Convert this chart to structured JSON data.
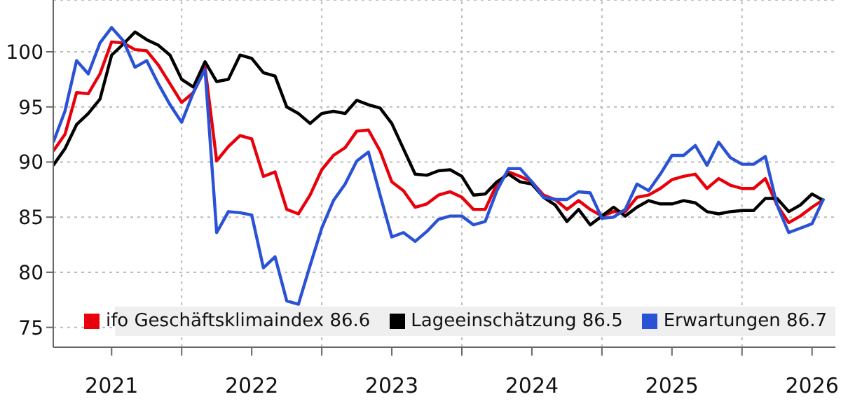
{
  "chart_data": {
    "type": "line",
    "x": [
      "2021-02",
      "2021-03",
      "2021-04",
      "2021-05",
      "2021-06",
      "2021-07",
      "2021-08",
      "2021-09",
      "2021-10",
      "2021-11",
      "2021-12",
      "2022-01",
      "2022-02",
      "2022-03",
      "2022-04",
      "2022-05",
      "2022-06",
      "2022-07",
      "2022-08",
      "2022-09",
      "2022-10",
      "2022-11",
      "2022-12",
      "2023-01",
      "2023-02",
      "2023-03",
      "2023-04",
      "2023-05",
      "2023-06",
      "2023-07",
      "2023-08",
      "2023-09",
      "2023-10",
      "2023-11",
      "2023-12",
      "2024-01",
      "2024-02",
      "2024-03",
      "2024-04",
      "2024-05",
      "2024-06",
      "2024-07",
      "2024-08",
      "2024-09",
      "2024-10",
      "2024-11",
      "2024-12",
      "2025-01",
      "2025-02",
      "2025-03",
      "2025-04",
      "2025-05",
      "2025-06",
      "2025-07",
      "2025-08",
      "2025-09",
      "2025-10",
      "2025-11",
      "2025-12",
      "2026-01",
      "2026-02",
      "2026-03",
      "2026-04",
      "2026-05",
      "2026-06",
      "2026-07",
      "2026-08"
    ],
    "series": [
      {
        "name": "ifo Geschäftsklimaindex 86.6",
        "color": "#e8000b",
        "values": [
          91.0,
          92.5,
          96.3,
          96.2,
          98.0,
          100.9,
          100.8,
          100.2,
          100.1,
          98.8,
          97.1,
          95.4,
          96.3,
          98.6,
          90.1,
          91.4,
          92.4,
          92.1,
          88.7,
          89.1,
          85.7,
          85.3,
          87.0,
          89.3,
          90.6,
          91.3,
          92.8,
          92.9,
          91.0,
          88.2,
          87.4,
          85.9,
          86.2,
          87.0,
          87.3,
          86.8,
          85.7,
          85.7,
          88.0,
          89.1,
          88.7,
          88.2,
          87.0,
          86.6,
          85.7,
          86.5,
          85.7,
          85.1,
          85.5,
          85.5,
          86.8,
          87.0,
          87.6,
          88.4,
          88.7,
          88.9,
          87.6,
          88.5,
          87.9,
          87.6,
          87.6,
          88.5,
          86.1,
          84.5,
          85.1,
          85.9,
          86.6
        ]
      },
      {
        "name": "Lageeinschätzung 86.5",
        "color": "#000000",
        "values": [
          89.7,
          91.2,
          93.4,
          94.4,
          95.7,
          99.7,
          100.7,
          101.8,
          101.1,
          100.6,
          99.7,
          97.5,
          96.8,
          99.1,
          97.3,
          97.5,
          99.7,
          99.4,
          98.1,
          97.8,
          95.0,
          94.4,
          93.5,
          94.4,
          94.6,
          94.4,
          95.6,
          95.2,
          94.9,
          93.5,
          91.2,
          88.9,
          88.8,
          89.2,
          89.3,
          88.7,
          87.0,
          87.1,
          88.2,
          88.9,
          88.2,
          88.0,
          86.8,
          86.1,
          84.6,
          85.7,
          84.3,
          85.1,
          85.9,
          85.1,
          85.9,
          86.5,
          86.2,
          86.2,
          86.5,
          86.3,
          85.5,
          85.3,
          85.5,
          85.6,
          85.6,
          86.7,
          86.7,
          85.5,
          86.1,
          87.1,
          86.5
        ]
      },
      {
        "name": "Erwartungen 86.7",
        "color": "#2a52d4",
        "values": [
          91.8,
          94.6,
          99.2,
          98.0,
          100.8,
          102.2,
          101.0,
          98.6,
          99.2,
          97.1,
          95.2,
          93.6,
          96.3,
          98.4,
          83.6,
          85.5,
          85.4,
          85.2,
          80.4,
          81.4,
          77.4,
          77.1,
          80.6,
          84.0,
          86.5,
          88.0,
          90.1,
          90.9,
          87.0,
          83.2,
          83.6,
          82.8,
          83.7,
          84.8,
          85.1,
          85.1,
          84.3,
          84.6,
          87.4,
          89.4,
          89.4,
          88.2,
          86.8,
          86.6,
          86.6,
          87.3,
          87.2,
          84.9,
          85.0,
          85.7,
          88.0,
          87.4,
          88.9,
          90.6,
          90.6,
          91.5,
          89.7,
          91.8,
          90.4,
          89.8,
          89.8,
          90.5,
          86.1,
          83.6,
          84.0,
          84.4,
          86.7
        ]
      }
    ],
    "xlim": [
      "2021-02",
      "2026-09"
    ],
    "xticks": [
      {
        "value": "2021-07",
        "label": "2021"
      },
      {
        "value": "2022-01",
        "label": null
      },
      {
        "value": "2022-07",
        "label": "2022"
      },
      {
        "value": "2023-01",
        "label": null
      },
      {
        "value": "2023-07",
        "label": "2023"
      },
      {
        "value": "2024-01",
        "label": null
      },
      {
        "value": "2024-07",
        "label": "2024"
      },
      {
        "value": "2025-01",
        "label": null
      },
      {
        "value": "2025-07",
        "label": "2025"
      },
      {
        "value": "2026-01",
        "label": null
      },
      {
        "value": "2026-07",
        "label": "2026"
      }
    ],
    "ylim": [
      73.2,
      104.7
    ],
    "yticks": [
      75,
      80,
      85,
      90,
      95,
      100
    ],
    "grid": true,
    "legend": "bottom",
    "marker": "none",
    "line_style": "solid"
  }
}
